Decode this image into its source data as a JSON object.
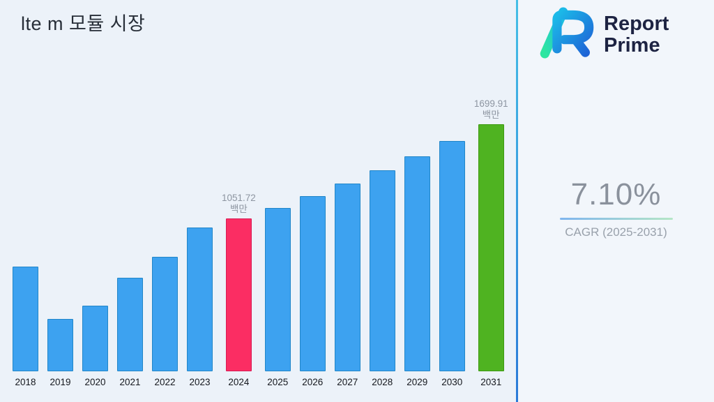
{
  "title": "lte m 모듈 시장",
  "brand": {
    "name_line1": "Report",
    "name_line2": "Prime",
    "logo_icon": "report-prime-gradient-r",
    "logo_colors": {
      "green": "#2ee6a0",
      "teal": "#1cb9e8",
      "blue": "#1e63d6"
    },
    "text_color": "#1d2342"
  },
  "cagr": {
    "value": "7.10%",
    "label": "CAGR (2025-2031)"
  },
  "layout_colors": {
    "background": "#ecf2f9",
    "right_panel": "#f2f6fb",
    "divider": "#2b7ad8"
  },
  "chart_data": {
    "type": "bar",
    "title": "lte m 모듈 시장",
    "xlabel": "",
    "ylabel": "",
    "unit": "백만",
    "grid": false,
    "legend": "none",
    "ylim": [
      0,
      1750
    ],
    "categories": [
      "2018",
      "2019",
      "2020",
      "2021",
      "2022",
      "2023",
      "2024",
      "2025",
      "2026",
      "2027",
      "2028",
      "2029",
      "2030",
      "2031"
    ],
    "values": [
      720,
      360,
      450,
      645,
      790,
      990,
      1051.72,
      1126.65,
      1206,
      1292,
      1383,
      1482,
      1587,
      1699.91
    ],
    "annotations": [
      {
        "category": "2024",
        "value_label": "1051.72",
        "unit": "백만"
      },
      {
        "category": "2031",
        "value_label": "1699.91",
        "unit": "백만"
      }
    ],
    "bar_colors": {
      "default": "#3da2f0",
      "2024": "#fb2d63",
      "2031": "#4fb321"
    },
    "bar_border_colors": {
      "default": "#2186c8",
      "2024": "#d81b55",
      "2031": "#3d9a12"
    }
  }
}
